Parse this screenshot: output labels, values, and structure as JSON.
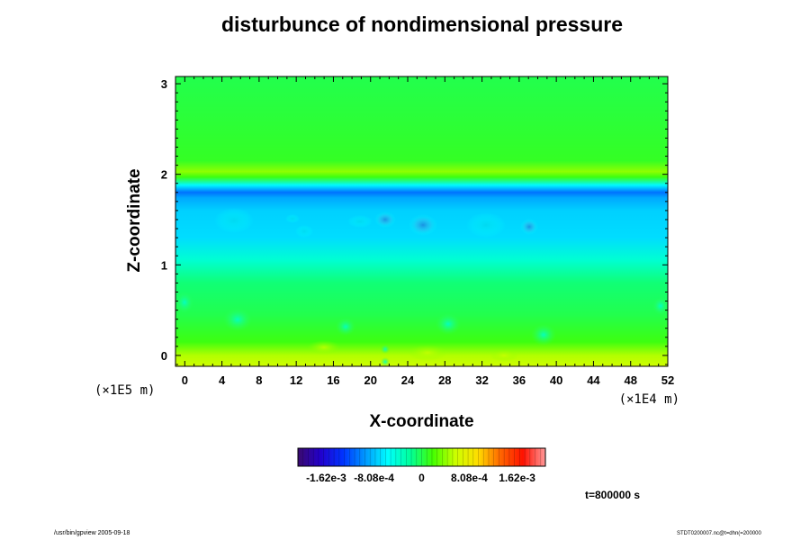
{
  "chart_data": {
    "type": "heatmap",
    "title": "disturbunce of nondimensional pressure",
    "xlabel": "X-coordinate",
    "ylabel": "Z-coordinate",
    "x_unit": "(×1E4 m)",
    "y_unit": "(×1E5 m)",
    "xlim": [
      -1,
      52
    ],
    "ylim": [
      -0.12,
      3.08
    ],
    "x_ticks": [
      0,
      4,
      8,
      12,
      16,
      20,
      24,
      28,
      32,
      36,
      40,
      44,
      48,
      52
    ],
    "y_ticks": [
      0,
      1,
      2,
      3
    ],
    "colorbar": {
      "min": -0.0021,
      "max": 0.0021,
      "tick_values": [
        -0.00162,
        -0.000808,
        0,
        0.000808,
        0.00162
      ],
      "tick_labels": [
        "-1.62e-3",
        "-8.08e-4",
        "0",
        "8.08e-4",
        "1.62e-3"
      ],
      "colors": [
        "#3a0a6e",
        "#2200cc",
        "#0033ff",
        "#0099ff",
        "#00ffff",
        "#00ff99",
        "#44ff00",
        "#ccff00",
        "#ffdd00",
        "#ff6600",
        "#ff1100",
        "#ff9999"
      ]
    },
    "z_bands": [
      {
        "z": -0.12,
        "value": 0.0006
      },
      {
        "z": 0.0,
        "value": 0.0005
      },
      {
        "z": 0.15,
        "value": 0.00015
      },
      {
        "z": 0.45,
        "value": 0.0
      },
      {
        "z": 0.8,
        "value": -0.0001
      },
      {
        "z": 1.05,
        "value": -0.0004
      },
      {
        "z": 1.3,
        "value": -0.0007
      },
      {
        "z": 1.6,
        "value": -0.00075
      },
      {
        "z": 1.74,
        "value": -0.0009
      },
      {
        "z": 1.8,
        "value": -0.0011
      },
      {
        "z": 1.88,
        "value": -0.0006
      },
      {
        "z": 1.97,
        "value": 0.00015
      },
      {
        "z": 2.03,
        "value": 0.0004
      },
      {
        "z": 2.15,
        "value": 0.0001
      },
      {
        "z": 3.08,
        "value": 0.0
      }
    ]
  },
  "time_label": "t=800000 s",
  "footer_left": "/usr/bin/gpview 2005-09-18",
  "footer_right": "STDT0200007.nc@t=dhn(=200000"
}
